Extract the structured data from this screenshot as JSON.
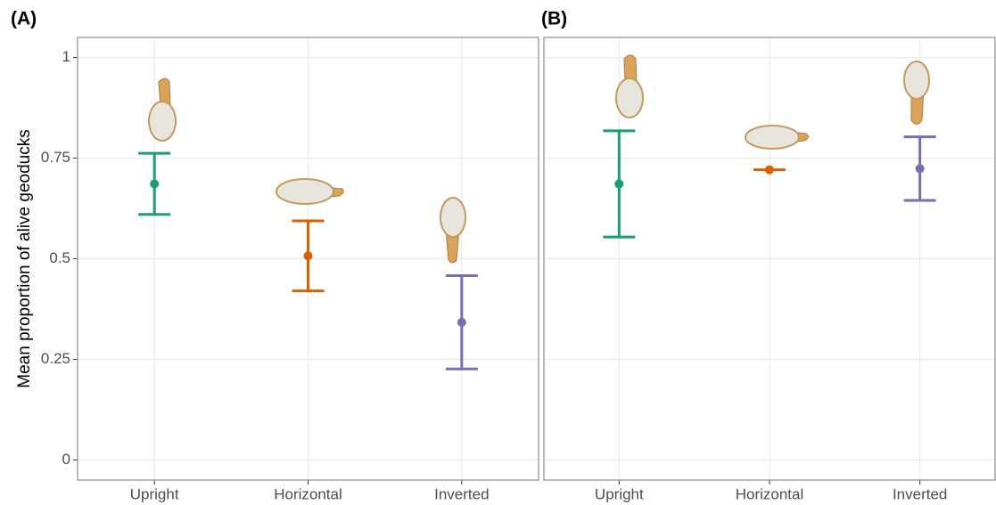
{
  "chart_data": [
    {
      "type": "errorbar",
      "title": "(A)",
      "y_label": "Mean proportion of alive geoducks",
      "categories": [
        "Upright",
        "Horizontal",
        "Inverted"
      ],
      "values": [
        0.686,
        0.507,
        0.342
      ],
      "errors": [
        0.076,
        0.087,
        0.116
      ],
      "colors": [
        "#1b9e77",
        "#d95f02",
        "#7570b3"
      ],
      "ylim": [
        -0.05,
        1.05
      ],
      "yticks": [
        0.0,
        0.25,
        0.5,
        0.75,
        1.0
      ],
      "grid": true
    },
    {
      "type": "errorbar",
      "title": "(B)",
      "categories": [
        "Upright",
        "Horizontal",
        "Inverted"
      ],
      "values": [
        0.686,
        0.721,
        0.724
      ],
      "errors": [
        0.132,
        0.0,
        0.079
      ],
      "colors": [
        "#1b9e77",
        "#d95f02",
        "#7570b3"
      ],
      "ylim": [
        -0.05,
        1.05
      ],
      "yticks": [
        0.0,
        0.25,
        0.5,
        0.75,
        1.0
      ],
      "grid": true
    }
  ]
}
